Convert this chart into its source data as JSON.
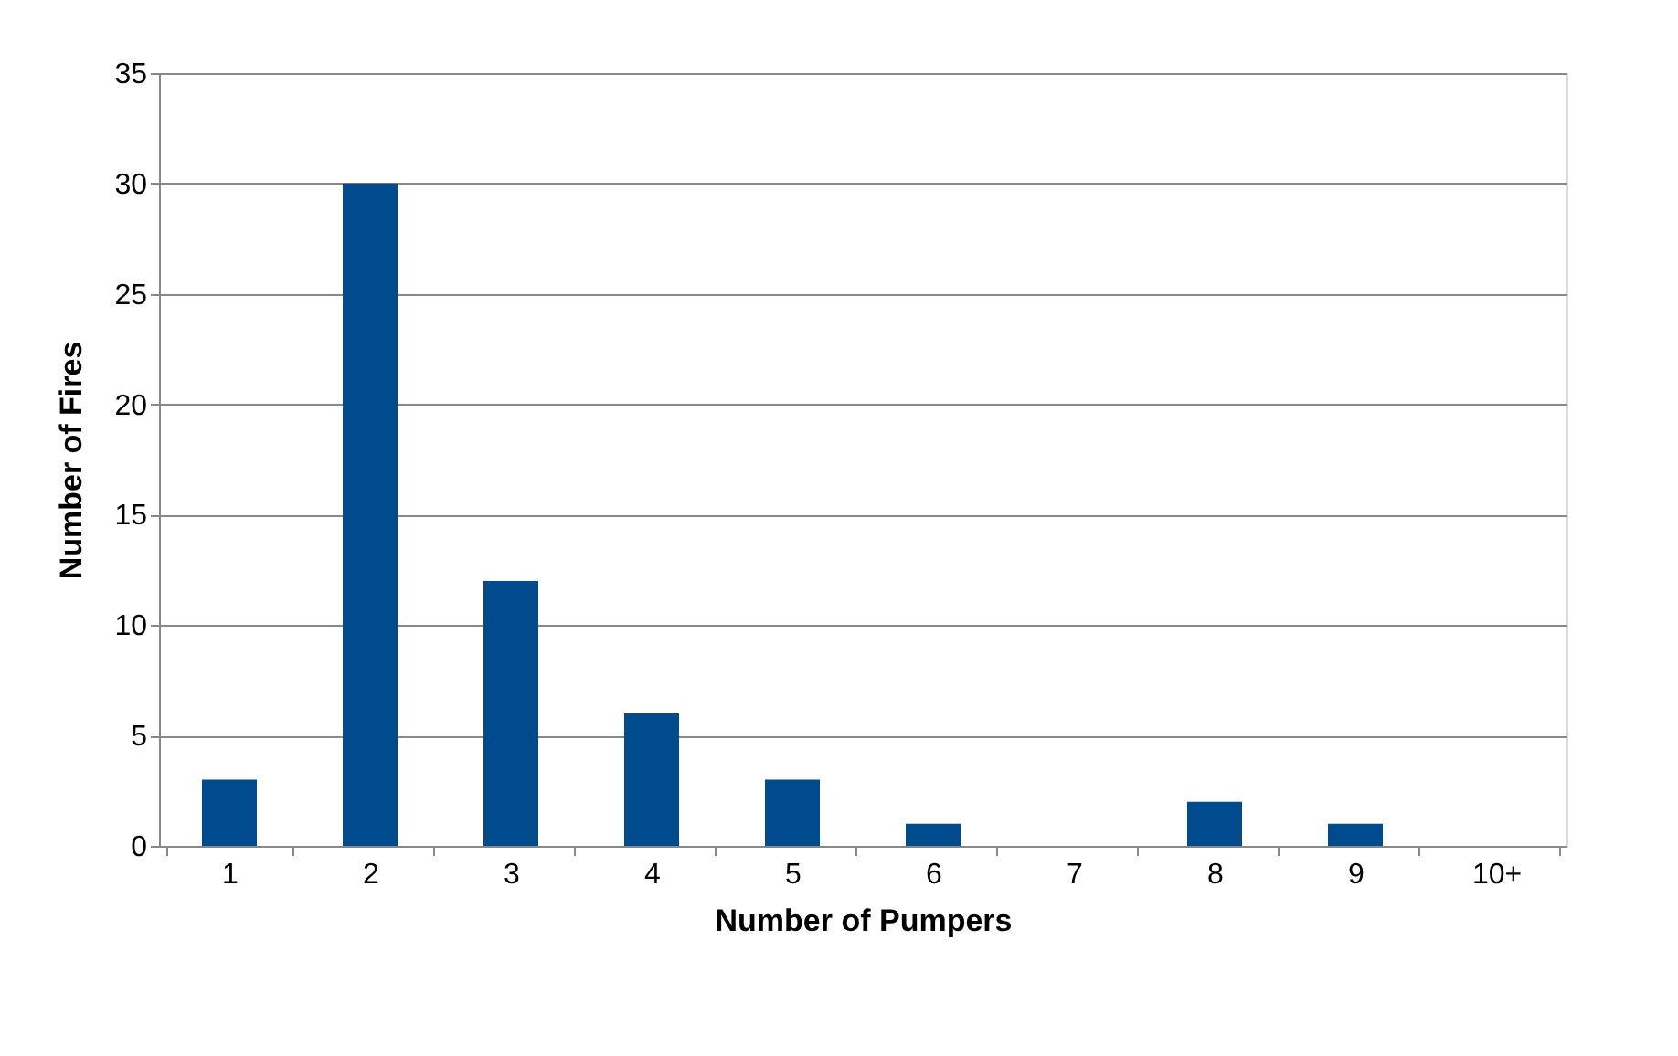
{
  "chart_data": {
    "type": "bar",
    "categories": [
      "1",
      "2",
      "3",
      "4",
      "5",
      "6",
      "7",
      "8",
      "9",
      "10+"
    ],
    "values": [
      3,
      30,
      12,
      6,
      3,
      1,
      0,
      2,
      1,
      0
    ],
    "color": "#004b8d",
    "xlabel": "Number of Pumpers",
    "ylabel": "Number of Fires",
    "ylim": [
      0,
      35
    ],
    "yticks": [
      0,
      5,
      10,
      15,
      20,
      25,
      30,
      35
    ],
    "grid": "y"
  }
}
